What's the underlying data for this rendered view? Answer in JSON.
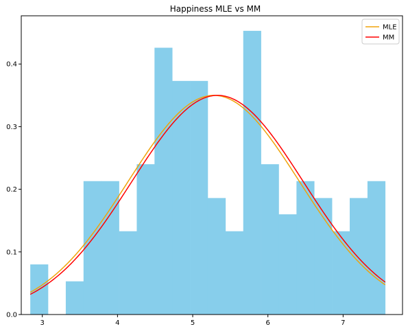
{
  "chart_data": {
    "type": "bar",
    "title": "Happiness MLE vs MM",
    "xlabel": "",
    "ylabel": "",
    "xlim": [
      2.72,
      7.79
    ],
    "ylim": [
      0,
      0.477
    ],
    "grid": false,
    "legend_position": "top-right",
    "histogram": {
      "color": "#87ceeb",
      "bins": [
        {
          "x0": 2.84,
          "x1": 3.076,
          "value": 0.08
        },
        {
          "x0": 3.076,
          "x1": 3.312,
          "value": 0.0
        },
        {
          "x0": 3.312,
          "x1": 3.548,
          "value": 0.053
        },
        {
          "x0": 3.548,
          "x1": 3.784,
          "value": 0.213
        },
        {
          "x0": 3.784,
          "x1": 4.02,
          "value": 0.213
        },
        {
          "x0": 4.02,
          "x1": 4.256,
          "value": 0.133
        },
        {
          "x0": 4.256,
          "x1": 4.492,
          "value": 0.24
        },
        {
          "x0": 4.492,
          "x1": 4.728,
          "value": 0.426
        },
        {
          "x0": 4.728,
          "x1": 4.964,
          "value": 0.373
        },
        {
          "x0": 4.964,
          "x1": 5.2,
          "value": 0.373
        },
        {
          "x0": 5.2,
          "x1": 5.436,
          "value": 0.186
        },
        {
          "x0": 5.436,
          "x1": 5.672,
          "value": 0.133
        },
        {
          "x0": 5.672,
          "x1": 5.908,
          "value": 0.453
        },
        {
          "x0": 5.908,
          "x1": 6.144,
          "value": 0.24
        },
        {
          "x0": 6.144,
          "x1": 6.38,
          "value": 0.16
        },
        {
          "x0": 6.38,
          "x1": 6.616,
          "value": 0.213
        },
        {
          "x0": 6.616,
          "x1": 6.852,
          "value": 0.186
        },
        {
          "x0": 6.852,
          "x1": 7.088,
          "value": 0.133
        },
        {
          "x0": 7.088,
          "x1": 7.324,
          "value": 0.186
        },
        {
          "x0": 7.324,
          "x1": 7.56,
          "value": 0.213
        }
      ]
    },
    "series": [
      {
        "name": "MLE",
        "type": "line",
        "color": "#f0a30a",
        "mu": 5.28,
        "sigma": 1.14,
        "x_range": [
          2.84,
          7.56
        ]
      },
      {
        "name": "MM",
        "type": "line",
        "color": "#ff0000",
        "mu": 5.33,
        "sigma": 1.14,
        "x_range": [
          2.84,
          7.56
        ]
      }
    ],
    "xticks": [
      3,
      4,
      5,
      6,
      7
    ],
    "xtick_labels": [
      "3",
      "4",
      "5",
      "6",
      "7"
    ],
    "yticks": [
      0.0,
      0.1,
      0.2,
      0.3,
      0.4
    ],
    "ytick_labels": [
      "0.0",
      "0.1",
      "0.2",
      "0.3",
      "0.4"
    ]
  }
}
